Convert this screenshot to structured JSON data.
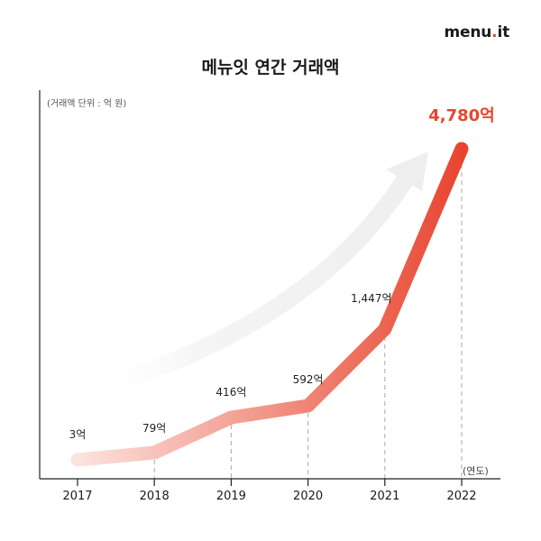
{
  "brand": {
    "prefix": "menu",
    "dot": ".",
    "suffix": "it"
  },
  "colors": {
    "accent": "#e8452f",
    "line_start": "#fbe3de",
    "line_end": "#e8452f",
    "axis": "#222222",
    "guide": "#aaaaaa",
    "arrow": "#f3f3f3"
  },
  "chart_data": {
    "type": "line",
    "title": "메뉴잇 연간 거래액",
    "unit_label": "(거래액 단위 : 억 원)",
    "xlabel": "(연도)",
    "ylabel": "",
    "categories": [
      "2017",
      "2018",
      "2019",
      "2020",
      "2021",
      "2022"
    ],
    "values": [
      3,
      79,
      416,
      592,
      1447,
      4780
    ],
    "data_labels": [
      "3억",
      "79억",
      "416억",
      "592억",
      "1,447억",
      "4,780억"
    ],
    "grid": false,
    "highlight_last": true
  }
}
